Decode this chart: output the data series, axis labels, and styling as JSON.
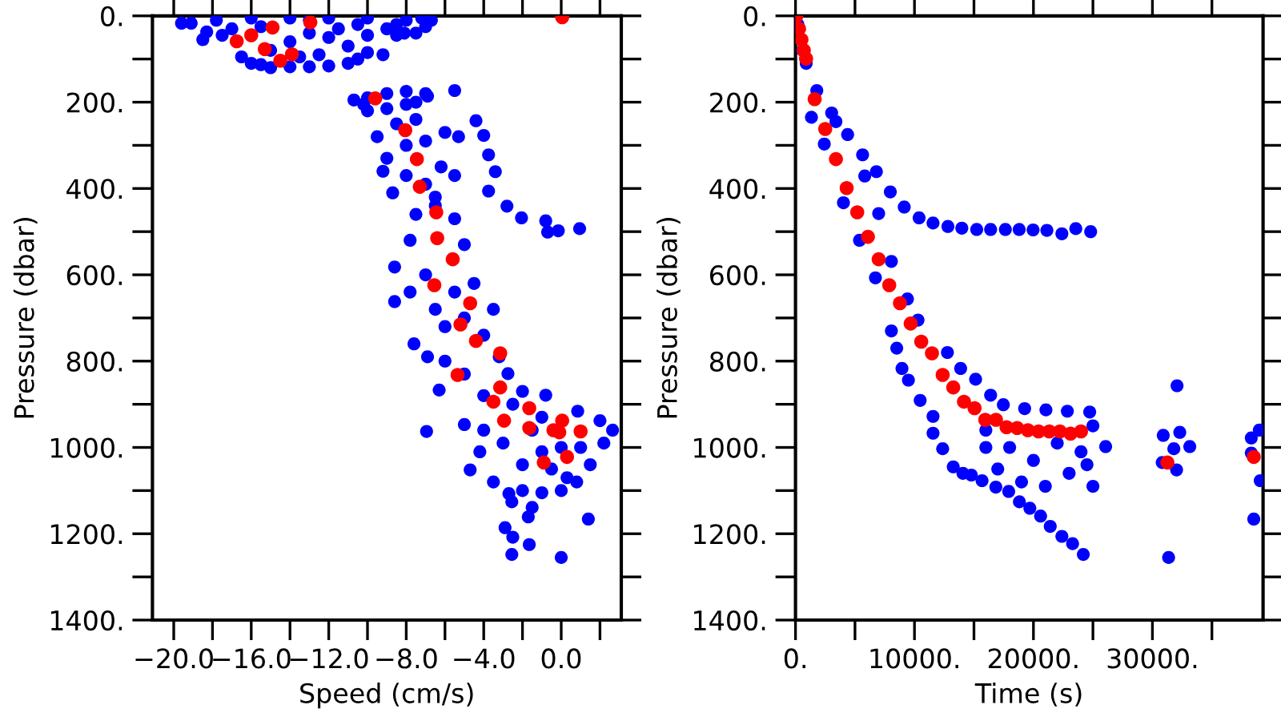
{
  "chart_data": [
    {
      "type": "scatter",
      "xlabel": "Speed (cm/s)",
      "ylabel": "Pressure (dbar)",
      "marker": "circle",
      "grid": false,
      "xlim": [
        -21.1,
        3.1
      ],
      "xticks": [
        {
          "value": -20,
          "label": "−20.0"
        },
        {
          "value": -18,
          "label": null
        },
        {
          "value": -16,
          "label": "−16.0"
        },
        {
          "value": -14,
          "label": null
        },
        {
          "value": -12,
          "label": "−12.0"
        },
        {
          "value": -10,
          "label": null
        },
        {
          "value": -8,
          "label": "−8.0"
        },
        {
          "value": -6,
          "label": null
        },
        {
          "value": -4,
          "label": "−4.0"
        },
        {
          "value": -2,
          "label": null
        },
        {
          "value": 0,
          "label": "0.0"
        },
        {
          "value": 2,
          "label": null
        }
      ],
      "ylim": [
        1400,
        0
      ],
      "yticks": [
        {
          "value": 0,
          "label": "0."
        },
        {
          "value": 100,
          "label": null
        },
        {
          "value": 200,
          "label": "200."
        },
        {
          "value": 300,
          "label": null
        },
        {
          "value": 400,
          "label": "400."
        },
        {
          "value": 500,
          "label": null
        },
        {
          "value": 600,
          "label": "600."
        },
        {
          "value": 700,
          "label": null
        },
        {
          "value": 800,
          "label": "800."
        },
        {
          "value": 900,
          "label": null
        },
        {
          "value": 1000,
          "label": "1000."
        },
        {
          "value": 1100,
          "label": null
        },
        {
          "value": 1200,
          "label": "1200."
        },
        {
          "value": 1300,
          "label": null
        },
        {
          "value": 1400,
          "label": "1400."
        }
      ],
      "series": [
        {
          "color": "#0000ff",
          "x": [
            -19.6,
            -19.1,
            -18.3,
            -17.5,
            -17.0,
            -16.5,
            -16,
            -15.5,
            -15,
            -14,
            -13,
            -12,
            -11,
            -10.5,
            -10,
            -11,
            -12,
            -13,
            -14,
            -15,
            -13.5,
            -12.5,
            -11.5,
            -10.5,
            -10,
            -9,
            -8.5,
            -9.2,
            -8,
            -7,
            -7.5,
            -8.1,
            -6.7,
            -7.2,
            -8.5,
            -17.8,
            -16,
            -14,
            -12,
            -10,
            -18.5,
            -15.5,
            -13,
            -10.7,
            -10,
            -9,
            -8,
            -7,
            -6.9,
            -5.5,
            -10,
            -9,
            -8,
            -7.5,
            -10.2,
            -4.4,
            -4.0,
            -3.75,
            -3.4,
            -3.75,
            -2.8,
            -2.05,
            -0.8,
            -0.7,
            -0.15,
            0.95,
            -9.5,
            -8.5,
            -7.5,
            -6,
            -5.3,
            -9,
            -8,
            -7,
            -9.2,
            -8.7,
            -6.2,
            -5.5,
            -7,
            -8,
            -6.5,
            -8.6,
            -8.6,
            -7.5,
            -6.5,
            -5.5,
            -7.8,
            -5,
            -7,
            -4.5,
            -3.5,
            -6.5,
            -5.5,
            -7.8,
            -7.6,
            -6.9,
            -6.95,
            -6.3,
            -5,
            -4.7,
            -6,
            -5,
            -4,
            -3.2,
            -2.75,
            -0.8,
            0.85,
            2.0,
            2.65,
            2.2,
            1.5,
            0.8,
            0,
            -1,
            -2,
            -2.7,
            -3.5,
            -4.2,
            -4,
            -3,
            -2,
            -1,
            0,
            1,
            -1.5,
            -2.5,
            -4,
            -5,
            -6,
            -2,
            -1,
            1.4,
            0,
            -1.65,
            -2.55,
            -2.5,
            -2.9,
            -1.7,
            -1.5,
            -2.55,
            0.3,
            -0.5
          ],
          "values": [
            17,
            17,
            37,
            45,
            30,
            95,
            110,
            113,
            120,
            118,
            118,
            116,
            110,
            100,
            85,
            70,
            50,
            40,
            60,
            80,
            95,
            90,
            30,
            20,
            45,
            30,
            45,
            90,
            10,
            25,
            40,
            40,
            10,
            5,
            20,
            10,
            5,
            5,
            5,
            5,
            55,
            25,
            10,
            195,
            190,
            180,
            175,
            180,
            186,
            173,
            220,
            215,
            205,
            200,
            205,
            243,
            277,
            322,
            361,
            406,
            441,
            468,
            475,
            501,
            498,
            493,
            280,
            250,
            240,
            270,
            280,
            330,
            300,
            290,
            360,
            410,
            350,
            370,
            390,
            370,
            420,
            582,
            662,
            460,
            440,
            470,
            520,
            530,
            600,
            620,
            680,
            680,
            640,
            640,
            760,
            790,
            963,
            867,
            947,
            1052,
            720,
            700,
            740,
            790,
            829,
            879,
            916,
            938,
            960,
            990,
            1040,
            1080,
            1100,
            1105,
            1100,
            1107,
            1080,
            1010,
            960,
            990,
            1040,
            1010,
            1000,
            1000,
            960,
            900,
            880,
            830,
            800,
            870,
            930,
            1166,
            1255,
            1225,
            1248,
            1208,
            1186,
            1161,
            1139,
            1126,
            1070,
            1050
          ]
        },
        {
          "color": "#ff0000",
          "x": [
            -16.75,
            -16.0,
            -14.9,
            -12.95,
            -15.3,
            -13.9,
            -14.5,
            0.05,
            -9.6,
            -8.05,
            -7.45,
            -7.3,
            -6.45,
            -6.4,
            -5.6,
            -6.55,
            -4.7,
            -5.2,
            -4.4,
            -3.15,
            -5.35,
            -3.15,
            -3.5,
            -2.95,
            -1.65,
            -1.65,
            -0.4,
            0.05,
            -0.1,
            1.0,
            0.3,
            -0.9
          ],
          "values": [
            59,
            45,
            27,
            15,
            77,
            89,
            104,
            3,
            191,
            265,
            332,
            396,
            455,
            515,
            564,
            624,
            666,
            715,
            753,
            782,
            832,
            861,
            894,
            938,
            909,
            955,
            960,
            938,
            965,
            963,
            1022,
            1035
          ]
        }
      ]
    },
    {
      "type": "scatter",
      "xlabel": "Time (s)",
      "ylabel": "Pressure (dbar)",
      "marker": "circle",
      "grid": false,
      "xlim": [
        0,
        39300
      ],
      "xticks": [
        {
          "value": 0,
          "label": "0."
        },
        {
          "value": 5000,
          "label": null
        },
        {
          "value": 10000,
          "label": "10000."
        },
        {
          "value": 15000,
          "label": null
        },
        {
          "value": 20000,
          "label": "20000."
        },
        {
          "value": 25000,
          "label": null
        },
        {
          "value": 30000,
          "label": "30000."
        },
        {
          "value": 35000,
          "label": null
        }
      ],
      "ylim": [
        1400,
        0
      ],
      "yticks": [
        {
          "value": 0,
          "label": "0."
        },
        {
          "value": 100,
          "label": null
        },
        {
          "value": 200,
          "label": "200."
        },
        {
          "value": 300,
          "label": null
        },
        {
          "value": 400,
          "label": "400."
        },
        {
          "value": 500,
          "label": null
        },
        {
          "value": 600,
          "label": "600."
        },
        {
          "value": 700,
          "label": null
        },
        {
          "value": 800,
          "label": "800."
        },
        {
          "value": 900,
          "label": null
        },
        {
          "value": 1000,
          "label": "1000."
        },
        {
          "value": 1100,
          "label": null
        },
        {
          "value": 1200,
          "label": "1200."
        },
        {
          "value": 1300,
          "label": null
        },
        {
          "value": 1400,
          "label": "1400."
        }
      ],
      "series": [
        {
          "color": "#0000ff",
          "x": [
            0,
            200,
            600,
            900,
            3040,
            4380,
            5640,
            6800,
            7970,
            9140,
            10390,
            11560,
            12810,
            13980,
            15230,
            16400,
            17640,
            18800,
            19970,
            21130,
            22390,
            23560,
            24810,
            19700,
            20600,
            21410,
            22390,
            23290,
            24190,
            18820,
            17920,
            16840,
            15680,
            14780,
            1790,
            3400,
            5820,
            6990,
            8060,
            9410,
            10300,
            12770,
            13880,
            15140,
            16400,
            17470,
            19260,
            21050,
            22850,
            24730,
            26070,
            1340,
            2420,
            4030,
            5380,
            6720,
            8060,
            8510,
            8950,
            9490,
            10480,
            11560,
            11560,
            12370,
            13260,
            14070,
            16000,
            17000,
            18000,
            19000,
            20000,
            21000,
            22000,
            23000,
            24000,
            25000,
            25000,
            24500,
            16000,
            30820,
            30910,
            31800,
            32030,
            32070,
            33140,
            31360,
            32300,
            38310,
            38980,
            39060,
            38520,
            38310
          ],
          "values": [
            0,
            20,
            80,
            110,
            225,
            275,
            322,
            361,
            408,
            443,
            468,
            480,
            488,
            492,
            495,
            495,
            495,
            495,
            496,
            497,
            505,
            493,
            500,
            1141,
            1159,
            1183,
            1206,
            1223,
            1248,
            1126,
            1102,
            1092,
            1077,
            1064,
            173,
            245,
            371,
            458,
            569,
            656,
            705,
            780,
            817,
            842,
            879,
            901,
            910,
            913,
            916,
            918,
            998,
            235,
            297,
            433,
            520,
            607,
            730,
            770,
            817,
            844,
            891,
            928,
            967,
            1003,
            1045,
            1060,
            1000,
            1050,
            1000,
            1080,
            1030,
            1090,
            990,
            1060,
            1010,
            950,
            1090,
            1040,
            960,
            1035,
            972,
            1003,
            1052,
            857,
            998,
            1255,
            965,
            978,
            960,
            1077,
            1166,
            1013
          ]
        },
        {
          "color": "#ff0000",
          "x": [
            80,
            300,
            500,
            700,
            890,
            1610,
            2500,
            3400,
            4300,
            5190,
            6090,
            6990,
            7880,
            8780,
            9680,
            10570,
            11470,
            12370,
            13260,
            14160,
            15050,
            15950,
            16850,
            17740,
            18630,
            19530,
            20430,
            21330,
            22220,
            23120,
            24000,
            31260,
            38520
          ],
          "values": [
            0,
            30,
            55,
            80,
            99,
            193,
            262,
            332,
            399,
            455,
            512,
            564,
            624,
            666,
            713,
            755,
            782,
            832,
            861,
            894,
            909,
            936,
            936,
            953,
            955,
            960,
            963,
            963,
            963,
            968,
            963,
            1035,
            1022
          ]
        }
      ]
    }
  ]
}
